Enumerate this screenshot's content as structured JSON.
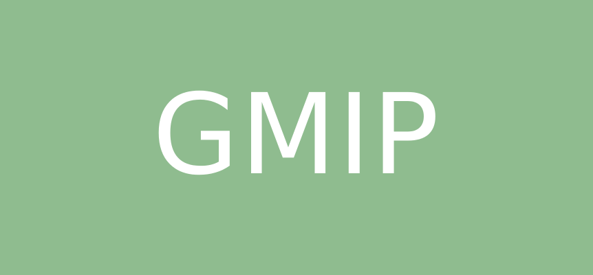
{
  "banner": {
    "title": "GMIP",
    "background_color": "#8fbc8f",
    "text_color": "#ffffff"
  }
}
